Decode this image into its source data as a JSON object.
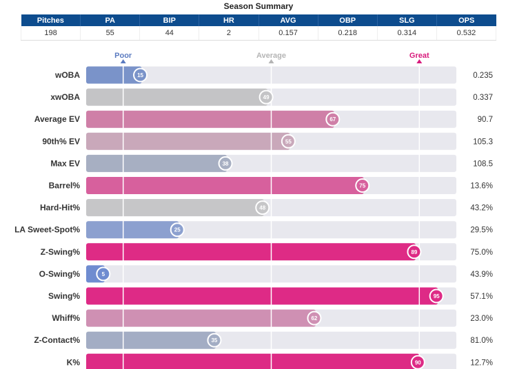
{
  "title": "Season Summary",
  "summary": {
    "headers": [
      "Pitches",
      "PA",
      "BIP",
      "HR",
      "AVG",
      "OBP",
      "SLG",
      "OPS"
    ],
    "values": [
      "198",
      "55",
      "44",
      "2",
      "0.157",
      "0.218",
      "0.314",
      "0.532"
    ]
  },
  "chart_data": {
    "type": "bar",
    "orientation": "horizontal",
    "xlim": [
      0,
      100
    ],
    "reference_lines": [
      {
        "label": "Poor",
        "value": 10,
        "color": "#5b7bc0"
      },
      {
        "label": "Average",
        "value": 50,
        "color": "#b5b5b5"
      },
      {
        "label": "Great",
        "value": 90,
        "color": "#d81b7c"
      }
    ],
    "categories": [
      "wOBA",
      "xwOBA",
      "Average EV",
      "90th% EV",
      "Max EV",
      "Barrel%",
      "Hard-Hit%",
      "LA Sweet-Spot%",
      "Z-Swing%",
      "O-Swing%",
      "Swing%",
      "Whiff%",
      "Z-Contact%",
      "K%"
    ],
    "percentiles": [
      15,
      49,
      67,
      55,
      38,
      75,
      48,
      25,
      89,
      5,
      95,
      62,
      35,
      90
    ],
    "stat_values": [
      "0.235",
      "0.337",
      "90.7",
      "105.3",
      "108.5",
      "13.6%",
      "43.2%",
      "29.5%",
      "75.0%",
      "43.9%",
      "57.1%",
      "23.0%",
      "81.0%",
      "12.7%"
    ],
    "colors": [
      "#7a93c9",
      "#c4c4c6",
      "#cf7fa7",
      "#c9a8ba",
      "#a7afc2",
      "#d7609d",
      "#c6c6c8",
      "#8ca0cf",
      "#de2b85",
      "#6f8cd0",
      "#de2a86",
      "#cf90b3",
      "#a3adc4",
      "#dd2b85"
    ]
  }
}
